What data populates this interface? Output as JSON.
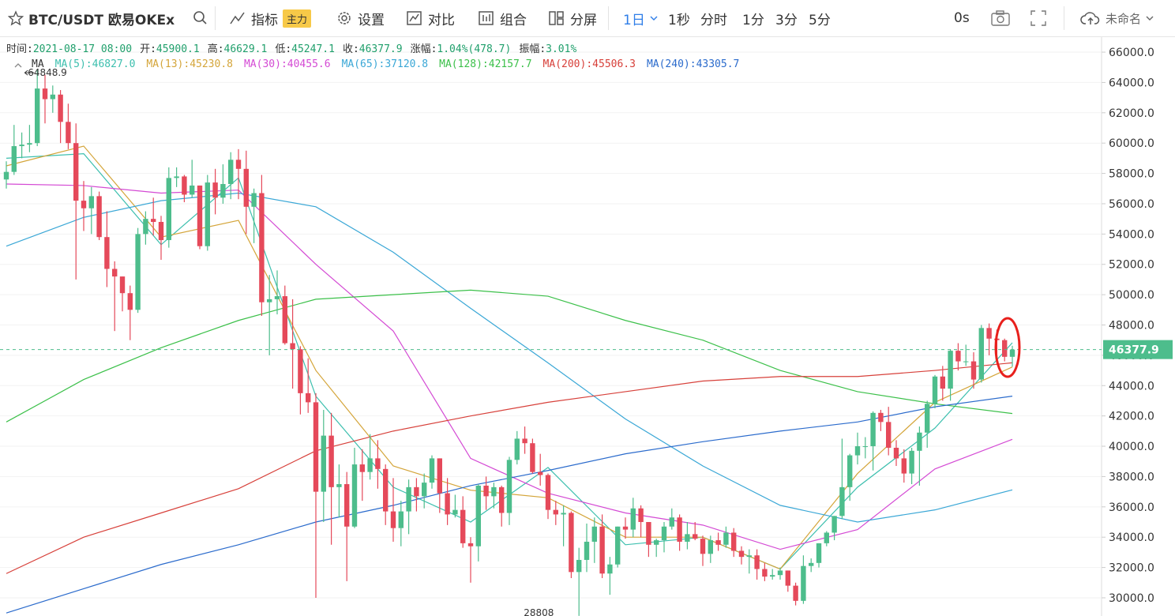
{
  "toolbar": {
    "symbol": "BTC/USDT 欧易OKEx",
    "tools": [
      {
        "label": "指标",
        "badge": "主力"
      },
      {
        "label": "设置"
      },
      {
        "label": "对比"
      },
      {
        "label": "组合"
      },
      {
        "label": "分屏"
      }
    ],
    "intervals": [
      "1日",
      "1秒",
      "分时",
      "1分",
      "3分",
      "5分"
    ],
    "timer": "0s",
    "layout_name": "未命名"
  },
  "info": [
    {
      "label": "时间:",
      "value": "2021-08-17 08:00"
    },
    {
      "label": "开:",
      "value": "45900.1"
    },
    {
      "label": "高:",
      "value": "46629.1"
    },
    {
      "label": "低:",
      "value": "45247.1"
    },
    {
      "label": "收:",
      "value": "46377.9"
    },
    {
      "label": "涨幅:",
      "value": "1.04%(478.7)"
    },
    {
      "label": "振幅:",
      "value": "3.01%"
    }
  ],
  "chart_data": {
    "type": "candlestick",
    "legend_title": "MA",
    "up_color": "#4dbd8c",
    "down_color": "#e5495a",
    "ylim": [
      28800,
      66940
    ],
    "yticks": [
      {
        "value": 30000,
        "label": "30000.0"
      },
      {
        "value": 32000,
        "label": "32000.0"
      },
      {
        "value": 34000,
        "label": "34000.0"
      },
      {
        "value": 36000,
        "label": "36000.0"
      },
      {
        "value": 38000,
        "label": "38000.0"
      },
      {
        "value": 40000,
        "label": "40000.0"
      },
      {
        "value": 42000,
        "label": "42000.0"
      },
      {
        "value": 44000,
        "label": "44000.0"
      },
      {
        "value": 46000,
        "label": "46000.0"
      },
      {
        "value": 48000,
        "label": "48000.0"
      },
      {
        "value": 50000,
        "label": "50000.0"
      },
      {
        "value": 52000,
        "label": "52000.0"
      },
      {
        "value": 54000,
        "label": "54000.0"
      },
      {
        "value": 56000,
        "label": "56000.0"
      },
      {
        "value": 58000,
        "label": "58000.0"
      },
      {
        "value": 60000,
        "label": "60000.0"
      },
      {
        "value": 62000,
        "label": "62000.0"
      },
      {
        "value": 64000,
        "label": "64000.0"
      },
      {
        "value": 66000,
        "label": "66000.0"
      }
    ],
    "grid": true,
    "high_index": 4,
    "low_index": 74,
    "candles": [
      [
        57600,
        58800,
        57000,
        58100
      ],
      [
        58100,
        61200,
        57900,
        59800
      ],
      [
        59800,
        60700,
        59000,
        59900
      ],
      [
        59900,
        61200,
        59400,
        60000
      ],
      [
        60000,
        64848.9,
        59800,
        63600
      ],
      [
        63600,
        64500,
        61300,
        62900
      ],
      [
        62900,
        63800,
        62000,
        63200
      ],
      [
        63200,
        63500,
        60000,
        61400
      ],
      [
        61400,
        62600,
        59600,
        60000
      ],
      [
        60000,
        61300,
        51000,
        56200
      ],
      [
        56200,
        57500,
        54200,
        55700
      ],
      [
        55700,
        57100,
        54000,
        56500
      ],
      [
        56500,
        56800,
        53600,
        53800
      ],
      [
        53800,
        55500,
        50500,
        51700
      ],
      [
        51700,
        52200,
        47600,
        51200
      ],
      [
        51200,
        51200,
        48900,
        50100
      ],
      [
        50100,
        50600,
        47000,
        49000
      ],
      [
        49000,
        54400,
        48800,
        54000
      ],
      [
        54000,
        55500,
        53300,
        55000
      ],
      [
        55000,
        56400,
        53900,
        54800
      ],
      [
        54800,
        55200,
        52300,
        53600
      ],
      [
        53600,
        58400,
        53100,
        57700
      ],
      [
        57700,
        58400,
        57100,
        57800
      ],
      [
        57800,
        57900,
        56100,
        56600
      ],
      [
        56600,
        58900,
        56400,
        57200
      ],
      [
        57200,
        57200,
        53000,
        53200
      ],
      [
        53200,
        57900,
        52900,
        57400
      ],
      [
        57400,
        58300,
        55300,
        56400
      ],
      [
        56400,
        58600,
        56000,
        57300
      ],
      [
        57300,
        59400,
        56300,
        58900
      ],
      [
        58900,
        59600,
        56300,
        58300
      ],
      [
        58300,
        59500,
        54000,
        55800
      ],
      [
        55800,
        57000,
        53400,
        56700
      ],
      [
        56700,
        57900,
        48600,
        49500
      ],
      [
        49500,
        51300,
        46000,
        49700
      ],
      [
        49700,
        51600,
        48700,
        49900
      ],
      [
        49900,
        50600,
        46700,
        46800
      ],
      [
        46800,
        49700,
        43800,
        46400
      ],
      [
        46400,
        46600,
        42100,
        43500
      ],
      [
        43500,
        45800,
        42200,
        42900
      ],
      [
        42900,
        43500,
        30000,
        37000
      ],
      [
        37000,
        42400,
        35000,
        40700
      ],
      [
        40700,
        42200,
        33500,
        37300
      ],
      [
        37300,
        38800,
        35300,
        37500
      ],
      [
        37500,
        38300,
        31100,
        34700
      ],
      [
        34700,
        39900,
        34600,
        38800
      ],
      [
        38800,
        39800,
        36400,
        38300
      ],
      [
        38300,
        40800,
        37800,
        39200
      ],
      [
        39200,
        40400,
        37200,
        38500
      ],
      [
        38500,
        38800,
        34800,
        35700
      ],
      [
        35700,
        37900,
        33700,
        34600
      ],
      [
        34600,
        36400,
        33400,
        35700
      ],
      [
        35700,
        37800,
        34200,
        37300
      ],
      [
        37300,
        37900,
        35700,
        36700
      ],
      [
        36700,
        38200,
        35900,
        37600
      ],
      [
        37600,
        39400,
        37200,
        39200
      ],
      [
        39200,
        39200,
        35600,
        36900
      ],
      [
        36900,
        37900,
        34800,
        35500
      ],
      [
        35500,
        36800,
        35300,
        35800
      ],
      [
        35800,
        36700,
        33300,
        33600
      ],
      [
        33600,
        34000,
        31000,
        33400
      ],
      [
        33400,
        37500,
        32400,
        37400
      ],
      [
        37400,
        38000,
        35800,
        36700
      ],
      [
        36700,
        37600,
        35900,
        37300
      ],
      [
        37300,
        37400,
        34700,
        35600
      ],
      [
        35600,
        39300,
        34800,
        39100
      ],
      [
        39100,
        41000,
        38800,
        40500
      ],
      [
        40500,
        41300,
        39500,
        40200
      ],
      [
        40200,
        40500,
        38200,
        38300
      ],
      [
        38300,
        39500,
        37400,
        38100
      ],
      [
        38100,
        38200,
        35200,
        35800
      ],
      [
        35800,
        36400,
        34800,
        35500
      ],
      [
        35500,
        36100,
        33400,
        35600
      ],
      [
        35600,
        35700,
        31300,
        31700
      ],
      [
        31700,
        33300,
        28808,
        32500
      ],
      [
        32500,
        34900,
        31700,
        33700
      ],
      [
        33700,
        35300,
        32300,
        34700
      ],
      [
        34700,
        35500,
        31300,
        31600
      ],
      [
        31600,
        32700,
        30200,
        32200
      ],
      [
        32200,
        34700,
        32000,
        34700
      ],
      [
        34700,
        35300,
        33900,
        34500
      ],
      [
        34500,
        36600,
        34000,
        35900
      ],
      [
        35900,
        36100,
        34000,
        35000
      ],
      [
        35000,
        35000,
        32700,
        33500
      ],
      [
        33500,
        33900,
        32700,
        33800
      ],
      [
        33800,
        35000,
        33000,
        34700
      ],
      [
        34700,
        35900,
        34500,
        35300
      ],
      [
        35300,
        35500,
        33100,
        33700
      ],
      [
        33700,
        35000,
        33200,
        34200
      ],
      [
        34200,
        35000,
        33800,
        33900
      ],
      [
        33900,
        34100,
        32100,
        32900
      ],
      [
        32900,
        34100,
        32300,
        33800
      ],
      [
        33800,
        34300,
        33100,
        33500
      ],
      [
        33500,
        34700,
        33300,
        34300
      ],
      [
        34300,
        34600,
        32700,
        33100
      ],
      [
        33100,
        33400,
        32200,
        32700
      ],
      [
        32700,
        33200,
        31600,
        32800
      ],
      [
        32800,
        33200,
        31200,
        31900
      ],
      [
        31900,
        32300,
        31100,
        31400
      ],
      [
        31400,
        31900,
        31200,
        31500
      ],
      [
        31500,
        32000,
        31200,
        31800
      ],
      [
        31800,
        31800,
        30400,
        30800
      ],
      [
        30800,
        31000,
        29500,
        29800
      ],
      [
        29800,
        32800,
        29600,
        32100
      ],
      [
        32100,
        32600,
        31700,
        32300
      ],
      [
        32300,
        33600,
        32000,
        33600
      ],
      [
        33600,
        34400,
        33400,
        34300
      ],
      [
        34300,
        35400,
        33800,
        35400
      ],
      [
        35400,
        40500,
        35200,
        37300
      ],
      [
        37300,
        39500,
        36400,
        39400
      ],
      [
        39400,
        40900,
        38800,
        40000
      ],
      [
        40000,
        40600,
        39200,
        40000
      ],
      [
        40000,
        42300,
        38400,
        42200
      ],
      [
        42200,
        42400,
        41000,
        41600
      ],
      [
        41600,
        42600,
        39400,
        39900
      ],
      [
        39900,
        40400,
        38700,
        39200
      ],
      [
        39200,
        39800,
        37600,
        38200
      ],
      [
        38200,
        39900,
        37500,
        39700
      ],
      [
        39700,
        41300,
        37400,
        40900
      ],
      [
        40900,
        43000,
        39900,
        42800
      ],
      [
        42800,
        44700,
        42500,
        44600
      ],
      [
        44600,
        45300,
        43000,
        43800
      ],
      [
        43800,
        46400,
        43000,
        46300
      ],
      [
        46300,
        46800,
        45000,
        45600
      ],
      [
        45600,
        46700,
        45300,
        45600
      ],
      [
        45600,
        46200,
        43800,
        44400
      ],
      [
        44400,
        48000,
        44200,
        47800
      ],
      [
        47800,
        48100,
        46000,
        47100
      ],
      [
        47100,
        47700,
        45600,
        47000
      ],
      [
        47000,
        47100,
        45600,
        45900
      ],
      [
        45900.1,
        46629.1,
        45247.1,
        46377.9
      ]
    ],
    "series": [
      {
        "name": "MA(5):46827.0",
        "color": "#3cbfae",
        "x": [
          0,
          10,
          20,
          30,
          40,
          50,
          60,
          70,
          80,
          90,
          100,
          110,
          120,
          130
        ],
        "values": [
          59000,
          59300,
          53300,
          57700,
          43300,
          37300,
          35000,
          38600,
          33500,
          34000,
          31900,
          37300,
          41200,
          46827
        ]
      },
      {
        "name": "MA(13):45230.8",
        "color": "#d4a53a",
        "x": [
          0,
          10,
          20,
          30,
          40,
          50,
          60,
          70,
          80,
          90,
          100,
          110,
          120,
          130
        ],
        "values": [
          58500,
          59800,
          53800,
          54900,
          45000,
          38700,
          37100,
          36600,
          34000,
          34000,
          31900,
          38200,
          42900,
          45230.8
        ]
      },
      {
        "name": "MA(30):40455.6",
        "color": "#d44ad4",
        "x": [
          0,
          10,
          20,
          30,
          40,
          50,
          60,
          70,
          80,
          90,
          100,
          110,
          120,
          130
        ],
        "values": [
          57300,
          57200,
          56700,
          56900,
          52000,
          47600,
          39200,
          36900,
          35600,
          34800,
          33200,
          34500,
          38500,
          40455.6
        ]
      },
      {
        "name": "MA(65):37120.8",
        "color": "#3aa7d6",
        "x": [
          0,
          10,
          20,
          30,
          40,
          50,
          60,
          70,
          80,
          90,
          100,
          110,
          120,
          130
        ],
        "values": [
          53200,
          55100,
          56200,
          56700,
          55800,
          52800,
          49100,
          45500,
          41800,
          38700,
          36100,
          35000,
          35800,
          37120.8
        ]
      },
      {
        "name": "MA(128):42157.7",
        "color": "#3cc04a",
        "x": [
          0,
          10,
          20,
          30,
          40,
          50,
          60,
          70,
          80,
          90,
          100,
          110,
          120,
          130
        ],
        "values": [
          41600,
          44400,
          46500,
          48300,
          49700,
          50000,
          50300,
          49900,
          48300,
          47000,
          45000,
          43600,
          42800,
          42157.7
        ]
      },
      {
        "name": "MA(200):45506.3",
        "color": "#d7403a",
        "x": [
          0,
          10,
          20,
          30,
          40,
          50,
          60,
          70,
          80,
          90,
          100,
          110,
          120,
          130
        ],
        "values": [
          31600,
          34000,
          35600,
          37200,
          39700,
          41000,
          42000,
          42900,
          43600,
          44300,
          44600,
          44600,
          45000,
          45506.3
        ]
      },
      {
        "name": "MA(240):43305.7",
        "color": "#2b6bcc",
        "x": [
          0,
          10,
          20,
          30,
          40,
          50,
          60,
          70,
          80,
          90,
          100,
          110,
          120,
          130
        ],
        "values": [
          29000,
          30600,
          32200,
          33500,
          35000,
          36100,
          37400,
          38400,
          39500,
          40300,
          41000,
          41600,
          42600,
          43305.7
        ]
      }
    ]
  }
}
